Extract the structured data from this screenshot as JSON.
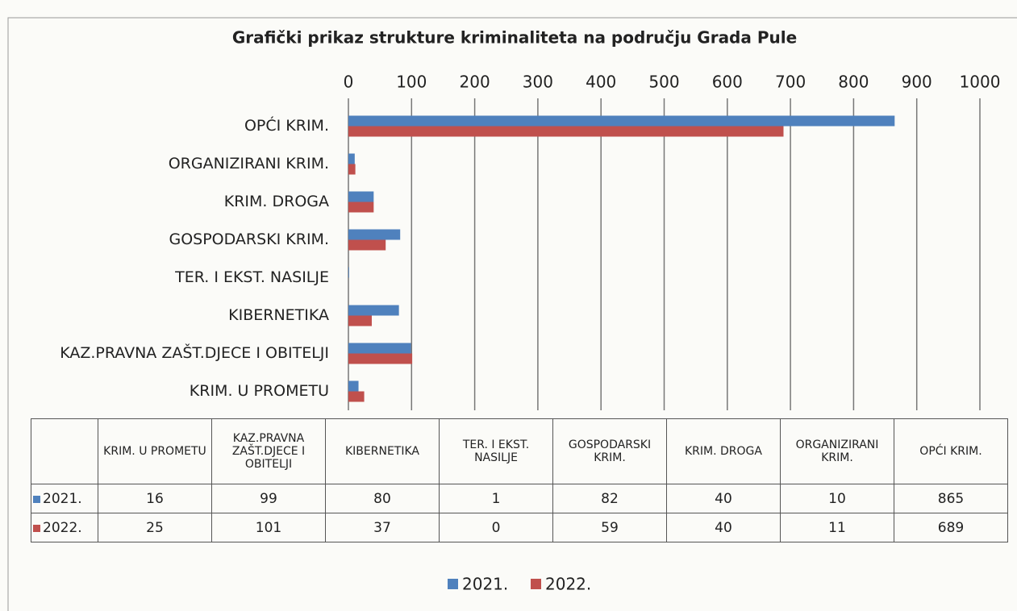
{
  "chart_data": {
    "type": "bar",
    "orientation": "horizontal",
    "title": "Grafički prikaz strukture kriminaliteta na području Grada Pule",
    "categories": [
      "KRIM. U PROMETU",
      "KAZ.PRAVNA ZAŠT.DJECE I OBITELJI",
      "KIBERNETIKA",
      "TER. I EKST. NASILJE",
      "GOSPODARSKI KRIM.",
      "KRIM. DROGA",
      "ORGANIZIRANI KRIM.",
      "OPĆI KRIM."
    ],
    "series": [
      {
        "name": "2021.",
        "color": "#4f81bd",
        "values": [
          16,
          99,
          80,
          1,
          82,
          40,
          10,
          865
        ]
      },
      {
        "name": "2022.",
        "color": "#c0504d",
        "values": [
          25,
          101,
          37,
          0,
          59,
          40,
          11,
          689
        ]
      }
    ],
    "xlim": [
      0,
      1000
    ],
    "xticks": [
      0,
      100,
      200,
      300,
      400,
      500,
      600,
      700,
      800,
      900,
      1000
    ],
    "grid": true,
    "legend": "bottom"
  }
}
